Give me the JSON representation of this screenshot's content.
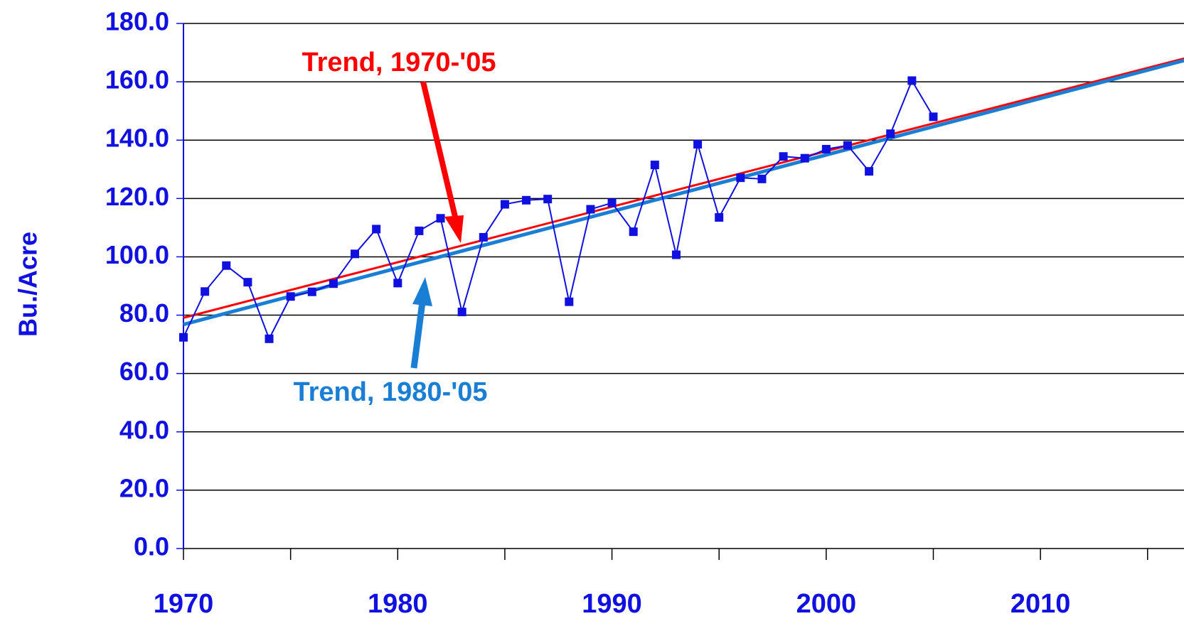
{
  "chart_data": {
    "type": "line",
    "y_label": "Bu./Acre",
    "annotations": [
      "Trend, 1970-'05",
      "Trend, 1980-'05"
    ],
    "xlim": [
      1970,
      2016.7
    ],
    "xticks": [
      1970,
      1980,
      1990,
      2000,
      2010
    ],
    "xminor": [
      1975,
      1985,
      1995,
      2005,
      2015
    ],
    "ylim": [
      0,
      180
    ],
    "yticks": [
      {
        "value": 0,
        "label": "0.0"
      },
      {
        "value": 20,
        "label": "20.0"
      },
      {
        "value": 40,
        "label": "40.0"
      },
      {
        "value": 60,
        "label": "60.0"
      },
      {
        "value": 80,
        "label": "80.0"
      },
      {
        "value": 100,
        "label": "100.0"
      },
      {
        "value": 120,
        "label": "120.0"
      },
      {
        "value": 140,
        "label": "140.0"
      },
      {
        "value": 160,
        "label": "160.0"
      },
      {
        "value": 180,
        "label": "180.0"
      }
    ],
    "grid": true,
    "series": [
      {
        "color": "#1010e0",
        "markers": true,
        "width": 2,
        "x": [
          1970,
          1971,
          1972,
          1973,
          1974,
          1975,
          1976,
          1977,
          1978,
          1979,
          1980,
          1981,
          1982,
          1983,
          1984,
          1985,
          1986,
          1987,
          1988,
          1989,
          1990,
          1991,
          1992,
          1993,
          1994,
          1995,
          1996,
          1997,
          1998,
          1999,
          2000,
          2001,
          2002,
          2003,
          2004,
          2005
        ],
        "values": [
          72.4,
          88.1,
          97.0,
          91.3,
          71.9,
          86.4,
          88.0,
          90.8,
          101.0,
          109.5,
          91.0,
          108.9,
          113.2,
          81.1,
          106.7,
          118.0,
          119.4,
          119.8,
          84.6,
          116.3,
          118.5,
          108.6,
          131.5,
          100.7,
          138.6,
          113.5,
          127.1,
          126.7,
          134.4,
          133.8,
          136.9,
          138.2,
          129.3,
          142.2,
          160.4,
          148.0
        ]
      },
      {
        "color": "#ff0000",
        "markers": false,
        "width": 3,
        "x": [
          1970,
          2016.7
        ],
        "values": [
          79.1,
          168.0
        ]
      },
      {
        "color": "#1a7fd4",
        "markers": false,
        "width": 5,
        "x": [
          1970,
          2016.7
        ],
        "values": [
          76.8,
          167.3
        ]
      }
    ]
  }
}
